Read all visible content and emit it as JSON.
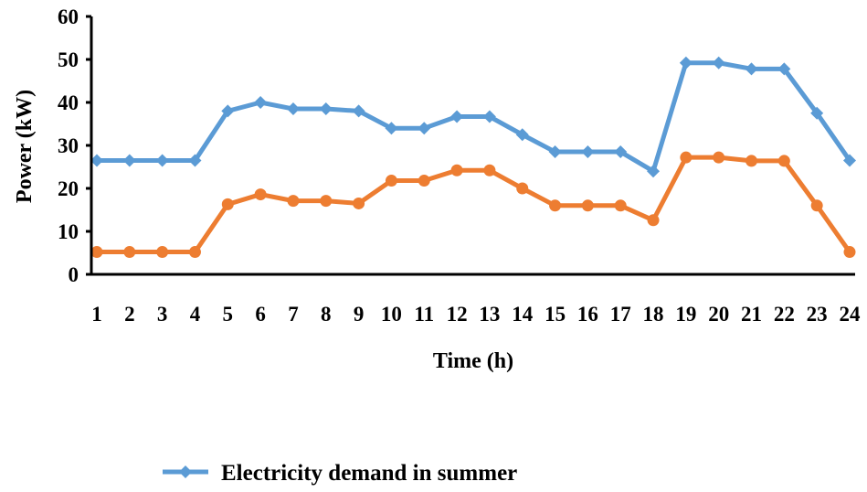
{
  "chart_data": {
    "type": "line",
    "xlabel": "Time (h)",
    "ylabel": "Power (kW)",
    "ylim": [
      0,
      60
    ],
    "yticks": [
      0,
      10,
      20,
      30,
      40,
      50,
      60
    ],
    "categories": [
      "1",
      "2",
      "3",
      "4",
      "5",
      "6",
      "7",
      "8",
      "9",
      "10",
      "11",
      "12",
      "13",
      "14",
      "15",
      "16",
      "17",
      "18",
      "19",
      "20",
      "21",
      "22",
      "23",
      "24"
    ],
    "grid": false,
    "legend_position": "bottom",
    "series": [
      {
        "name": "Electricity demand in summer",
        "color": "#5B9BD5",
        "marker": "diamond",
        "values": [
          26.5,
          26.5,
          26.5,
          26.5,
          38,
          40,
          38.5,
          38.5,
          38,
          34,
          34,
          36.7,
          36.7,
          32.5,
          28.5,
          28.5,
          28.5,
          24,
          49.2,
          49.2,
          47.8,
          47.8,
          37.5,
          26.5
        ]
      },
      {
        "name": "",
        "color": "#ED7D31",
        "marker": "circle",
        "values": [
          5.2,
          5.2,
          5.2,
          5.2,
          16.3,
          18.6,
          17.1,
          17.1,
          16.5,
          21.8,
          21.8,
          24.2,
          24.2,
          20,
          16,
          16,
          16,
          12.6,
          27.2,
          27.2,
          26.4,
          26.4,
          16,
          5.2
        ]
      }
    ]
  }
}
